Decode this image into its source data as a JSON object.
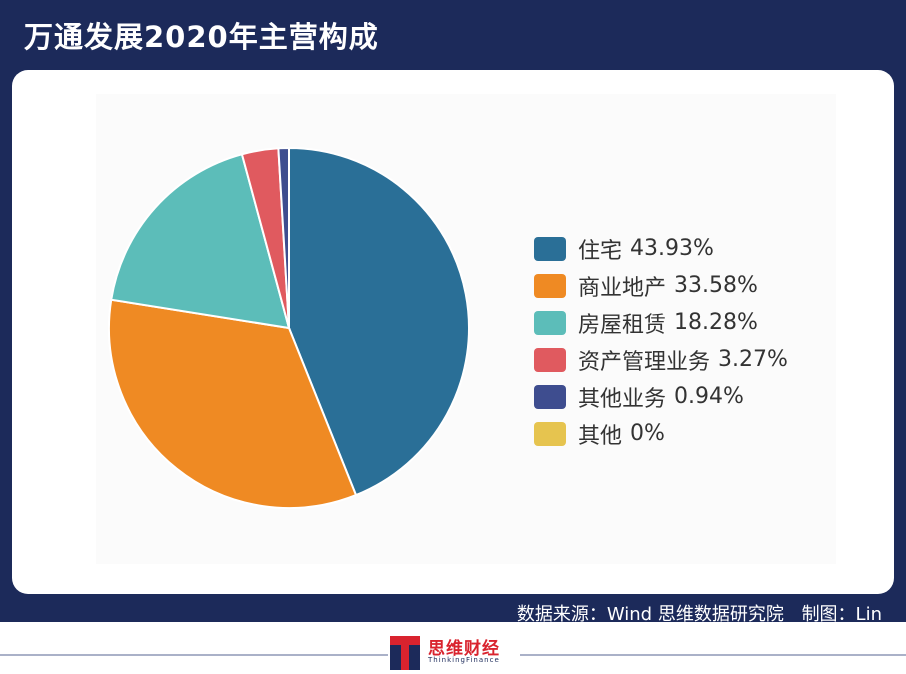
{
  "header": {
    "title": "万通发展2020年主营构成"
  },
  "chart_data": {
    "type": "pie",
    "title": "万通发展2020年主营构成",
    "categories": [
      "住宅",
      "商业地产",
      "房屋租赁",
      "资产管理业务",
      "其他业务",
      "其他"
    ],
    "values": [
      43.93,
      33.58,
      18.28,
      3.27,
      0.94,
      0
    ],
    "value_labels": [
      "43.93%",
      "33.58%",
      "18.28%",
      "3.27%",
      "0.94%",
      "0%"
    ],
    "colors": [
      "#2a6f97",
      "#ef8a23",
      "#5cbdb9",
      "#e05a5f",
      "#3e4d8f",
      "#e6c44f"
    ],
    "start_angle": "top",
    "direction": "clockwise",
    "legend_position": "right"
  },
  "footer": {
    "source": "数据来源：Wind  思维数据研究院",
    "credit": "制图：Lin",
    "logo_text": "思维财经",
    "logo_sub": "ThinkingFinance"
  }
}
